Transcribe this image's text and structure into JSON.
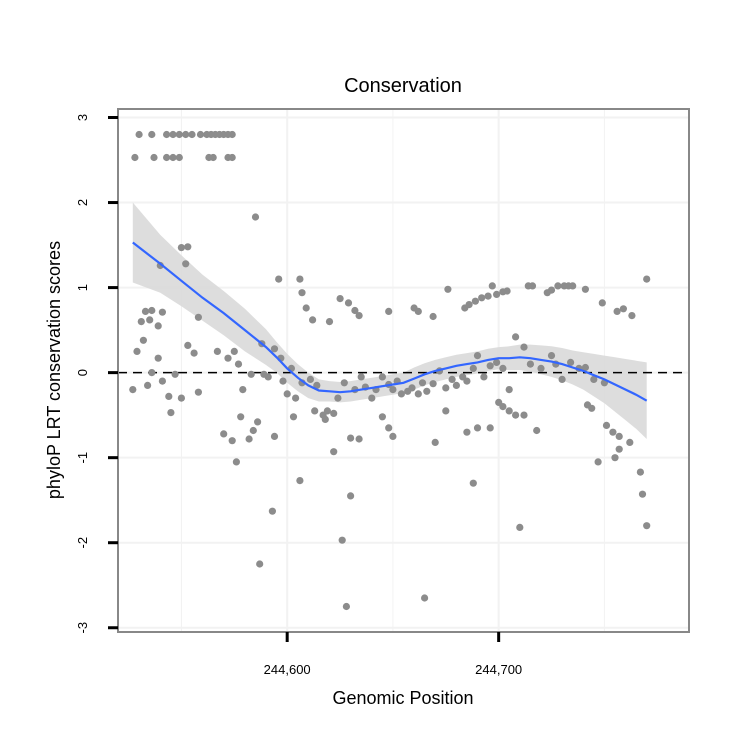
{
  "chart_data": {
    "type": "scatter",
    "title": "Conservation",
    "xlabel": "Genomic Position",
    "ylabel": "phyloP LRT conservation scores",
    "xlim": [
      244520,
      244790
    ],
    "ylim": [
      -3.05,
      3.1
    ],
    "x_ticks": [
      244600,
      244700
    ],
    "x_tick_labels": [
      "244,600",
      "244,700"
    ],
    "y_ticks": [
      -3,
      -2,
      -1,
      0,
      1,
      2,
      3
    ],
    "y_tick_labels": [
      "-3",
      "-2",
      "-1",
      "0",
      "1",
      "2",
      "3"
    ],
    "grid": true,
    "reference_line_y": 0,
    "colors": {
      "points": "#8c8c8c",
      "smooth": "#3366ff",
      "band": "#d9d9d9",
      "panel_border": "#888888",
      "grid": "#f2f2f2"
    },
    "points": [
      [
        244530,
        2.8
      ],
      [
        244536,
        2.8
      ],
      [
        244543,
        2.8
      ],
      [
        244546,
        2.8
      ],
      [
        244549,
        2.8
      ],
      [
        244552,
        2.8
      ],
      [
        244555,
        2.8
      ],
      [
        244559,
        2.8
      ],
      [
        244562,
        2.8
      ],
      [
        244564,
        2.8
      ],
      [
        244566,
        2.8
      ],
      [
        244568,
        2.8
      ],
      [
        244570,
        2.8
      ],
      [
        244572,
        2.8
      ],
      [
        244574,
        2.8
      ],
      [
        244528,
        2.53
      ],
      [
        244537,
        2.53
      ],
      [
        244543,
        2.53
      ],
      [
        244546,
        2.53
      ],
      [
        244549,
        2.53
      ],
      [
        244563,
        2.53
      ],
      [
        244565,
        2.53
      ],
      [
        244572,
        2.53
      ],
      [
        244574,
        2.53
      ],
      [
        244585,
        1.83
      ],
      [
        244550,
        1.47
      ],
      [
        244553,
        1.48
      ],
      [
        244552,
        1.28
      ],
      [
        244540,
        1.26
      ],
      [
        244596,
        1.1
      ],
      [
        244606,
        1.1
      ],
      [
        244607,
        0.94
      ],
      [
        244609,
        0.76
      ],
      [
        244612,
        0.62
      ],
      [
        244625,
        0.87
      ],
      [
        244629,
        0.82
      ],
      [
        244632,
        0.73
      ],
      [
        244634,
        0.67
      ],
      [
        244620,
        0.6
      ],
      [
        244648,
        0.72
      ],
      [
        244660,
        0.76
      ],
      [
        244662,
        0.72
      ],
      [
        244669,
        0.66
      ],
      [
        244676,
        0.98
      ],
      [
        244684,
        0.76
      ],
      [
        244686,
        0.8
      ],
      [
        244689,
        0.84
      ],
      [
        244692,
        0.88
      ],
      [
        244695,
        0.9
      ],
      [
        244697,
        1.02
      ],
      [
        244699,
        0.92
      ],
      [
        244702,
        0.95
      ],
      [
        244704,
        0.96
      ],
      [
        244714,
        1.02
      ],
      [
        244716,
        1.02
      ],
      [
        244723,
        0.94
      ],
      [
        244725,
        0.97
      ],
      [
        244728,
        1.02
      ],
      [
        244731,
        1.02
      ],
      [
        244733,
        1.02
      ],
      [
        244735,
        1.02
      ],
      [
        244741,
        0.98
      ],
      [
        244749,
        0.82
      ],
      [
        244756,
        0.72
      ],
      [
        244759,
        0.75
      ],
      [
        244763,
        0.67
      ],
      [
        244770,
        1.1
      ],
      [
        244533,
        0.72
      ],
      [
        244536,
        0.73
      ],
      [
        244541,
        0.71
      ],
      [
        244539,
        0.55
      ],
      [
        244531,
        0.6
      ],
      [
        244535,
        0.62
      ],
      [
        244558,
        0.65
      ],
      [
        244575,
        0.25
      ],
      [
        244588,
        0.34
      ],
      [
        244594,
        0.28
      ],
      [
        244597,
        0.17
      ],
      [
        244602,
        0.05
      ],
      [
        244553,
        0.32
      ],
      [
        244556,
        0.23
      ],
      [
        244529,
        0.25
      ],
      [
        244532,
        0.38
      ],
      [
        244539,
        0.17
      ],
      [
        244541,
        -0.1
      ],
      [
        244534,
        -0.15
      ],
      [
        244536,
        0
      ],
      [
        244527,
        -0.2
      ],
      [
        244544,
        -0.28
      ],
      [
        244545,
        -0.47
      ],
      [
        244547,
        -0.02
      ],
      [
        244550,
        -0.3
      ],
      [
        244558,
        -0.23
      ],
      [
        244567,
        0.25
      ],
      [
        244572,
        0.17
      ],
      [
        244577,
        0.1
      ],
      [
        244579,
        -0.2
      ],
      [
        244583,
        -0.02
      ],
      [
        244589,
        -0.02
      ],
      [
        244591,
        -0.05
      ],
      [
        244598,
        -0.1
      ],
      [
        244600,
        -0.25
      ],
      [
        244604,
        -0.3
      ],
      [
        244607,
        -0.12
      ],
      [
        244611,
        -0.08
      ],
      [
        244614,
        -0.15
      ],
      [
        244617,
        -0.5
      ],
      [
        244619,
        -0.45
      ],
      [
        244622,
        -0.48
      ],
      [
        244624,
        -0.3
      ],
      [
        244627,
        -0.12
      ],
      [
        244632,
        -0.2
      ],
      [
        244635,
        -0.05
      ],
      [
        244637,
        -0.17
      ],
      [
        244640,
        -0.3
      ],
      [
        244642,
        -0.2
      ],
      [
        244645,
        -0.05
      ],
      [
        244648,
        -0.14
      ],
      [
        244650,
        -0.2
      ],
      [
        244652,
        -0.1
      ],
      [
        244654,
        -0.25
      ],
      [
        244657,
        -0.22
      ],
      [
        244659,
        -0.18
      ],
      [
        244662,
        -0.25
      ],
      [
        244664,
        -0.12
      ],
      [
        244666,
        -0.22
      ],
      [
        244669,
        -0.13
      ],
      [
        244672,
        0.02
      ],
      [
        244675,
        -0.18
      ],
      [
        244678,
        -0.08
      ],
      [
        244680,
        -0.15
      ],
      [
        244683,
        -0.05
      ],
      [
        244685,
        -0.1
      ],
      [
        244688,
        0.05
      ],
      [
        244690,
        0.2
      ],
      [
        244693,
        -0.05
      ],
      [
        244696,
        0.08
      ],
      [
        244699,
        0.12
      ],
      [
        244702,
        0.05
      ],
      [
        244705,
        -0.2
      ],
      [
        244708,
        0.42
      ],
      [
        244712,
        0.3
      ],
      [
        244715,
        0.1
      ],
      [
        244720,
        0.05
      ],
      [
        244725,
        0.2
      ],
      [
        244727,
        0.1
      ],
      [
        244730,
        -0.08
      ],
      [
        244734,
        0.12
      ],
      [
        244738,
        0.05
      ],
      [
        244741,
        0.06
      ],
      [
        244745,
        -0.08
      ],
      [
        244750,
        -0.12
      ],
      [
        244570,
        -0.72
      ],
      [
        244574,
        -0.8
      ],
      [
        244578,
        -0.52
      ],
      [
        244582,
        -0.78
      ],
      [
        244584,
        -0.68
      ],
      [
        244586,
        -0.58
      ],
      [
        244594,
        -0.75
      ],
      [
        244603,
        -0.52
      ],
      [
        244613,
        -0.45
      ],
      [
        244618,
        -0.55
      ],
      [
        244630,
        -0.77
      ],
      [
        244634,
        -0.78
      ],
      [
        244645,
        -0.52
      ],
      [
        244648,
        -0.65
      ],
      [
        244650,
        -0.75
      ],
      [
        244670,
        -0.82
      ],
      [
        244675,
        -0.45
      ],
      [
        244685,
        -0.7
      ],
      [
        244690,
        -0.65
      ],
      [
        244696,
        -0.65
      ],
      [
        244700,
        -0.35
      ],
      [
        244702,
        -0.4
      ],
      [
        244705,
        -0.45
      ],
      [
        244708,
        -0.5
      ],
      [
        244712,
        -0.5
      ],
      [
        244718,
        -0.68
      ],
      [
        244742,
        -0.38
      ],
      [
        244744,
        -0.42
      ],
      [
        244751,
        -0.62
      ],
      [
        244754,
        -0.7
      ],
      [
        244757,
        -0.75
      ],
      [
        244762,
        -0.82
      ],
      [
        244576,
        -1.05
      ],
      [
        244606,
        -1.27
      ],
      [
        244622,
        -0.93
      ],
      [
        244688,
        -1.3
      ],
      [
        244747,
        -1.05
      ],
      [
        244755,
        -1.0
      ],
      [
        244757,
        -0.9
      ],
      [
        244767,
        -1.17
      ],
      [
        244768,
        -1.43
      ],
      [
        244770,
        -1.8
      ],
      [
        244710,
        -1.82
      ],
      [
        244593,
        -1.63
      ],
      [
        244587,
        -2.25
      ],
      [
        244626,
        -1.97
      ],
      [
        244630,
        -1.45
      ],
      [
        244628,
        -2.75
      ],
      [
        244665,
        -2.65
      ]
    ],
    "smooth_line": [
      [
        244527,
        1.53
      ],
      [
        244540,
        1.28
      ],
      [
        244550,
        1.08
      ],
      [
        244560,
        0.88
      ],
      [
        244570,
        0.7
      ],
      [
        244580,
        0.5
      ],
      [
        244590,
        0.3
      ],
      [
        244595,
        0.18
      ],
      [
        244600,
        0.05
      ],
      [
        244605,
        -0.06
      ],
      [
        244610,
        -0.15
      ],
      [
        244615,
        -0.21
      ],
      [
        244620,
        -0.22
      ],
      [
        244625,
        -0.23
      ],
      [
        244630,
        -0.22
      ],
      [
        244635,
        -0.2
      ],
      [
        244640,
        -0.18
      ],
      [
        244645,
        -0.16
      ],
      [
        244650,
        -0.14
      ],
      [
        244655,
        -0.12
      ],
      [
        244660,
        -0.07
      ],
      [
        244665,
        -0.02
      ],
      [
        244670,
        0.02
      ],
      [
        244675,
        0.05
      ],
      [
        244680,
        0.08
      ],
      [
        244685,
        0.1
      ],
      [
        244690,
        0.12
      ],
      [
        244695,
        0.15
      ],
      [
        244700,
        0.17
      ],
      [
        244705,
        0.17
      ],
      [
        244710,
        0.18
      ],
      [
        244715,
        0.17
      ],
      [
        244720,
        0.15
      ],
      [
        244725,
        0.13
      ],
      [
        244730,
        0.1
      ],
      [
        244735,
        0.06
      ],
      [
        244740,
        0.02
      ],
      [
        244745,
        -0.03
      ],
      [
        244750,
        -0.08
      ],
      [
        244755,
        -0.14
      ],
      [
        244760,
        -0.2
      ],
      [
        244765,
        -0.26
      ],
      [
        244770,
        -0.33
      ]
    ],
    "band_upper": [
      [
        244527,
        2.0
      ],
      [
        244540,
        1.62
      ],
      [
        244550,
        1.38
      ],
      [
        244560,
        1.15
      ],
      [
        244570,
        0.96
      ],
      [
        244580,
        0.75
      ],
      [
        244590,
        0.51
      ],
      [
        244595,
        0.36
      ],
      [
        244600,
        0.22
      ],
      [
        244605,
        0.1
      ],
      [
        244610,
        0.0
      ],
      [
        244615,
        -0.08
      ],
      [
        244620,
        -0.1
      ],
      [
        244625,
        -0.11
      ],
      [
        244630,
        -0.1
      ],
      [
        244635,
        -0.08
      ],
      [
        244640,
        -0.06
      ],
      [
        244645,
        -0.04
      ],
      [
        244650,
        -0.02
      ],
      [
        244655,
        0.0
      ],
      [
        244660,
        0.06
      ],
      [
        244665,
        0.11
      ],
      [
        244670,
        0.15
      ],
      [
        244675,
        0.18
      ],
      [
        244680,
        0.21
      ],
      [
        244685,
        0.23
      ],
      [
        244690,
        0.25
      ],
      [
        244695,
        0.28
      ],
      [
        244700,
        0.3
      ],
      [
        244705,
        0.31
      ],
      [
        244710,
        0.33
      ],
      [
        244715,
        0.33
      ],
      [
        244720,
        0.32
      ],
      [
        244725,
        0.31
      ],
      [
        244730,
        0.29
      ],
      [
        244735,
        0.26
      ],
      [
        244740,
        0.24
      ],
      [
        244745,
        0.22
      ],
      [
        244750,
        0.2
      ],
      [
        244755,
        0.18
      ],
      [
        244760,
        0.16
      ],
      [
        244765,
        0.14
      ],
      [
        244770,
        0.12
      ]
    ],
    "band_lower": [
      [
        244527,
        1.06
      ],
      [
        244540,
        0.94
      ],
      [
        244550,
        0.78
      ],
      [
        244560,
        0.61
      ],
      [
        244570,
        0.44
      ],
      [
        244580,
        0.25
      ],
      [
        244590,
        0.09
      ],
      [
        244595,
        0.0
      ],
      [
        244600,
        -0.12
      ],
      [
        244605,
        -0.22
      ],
      [
        244610,
        -0.3
      ],
      [
        244615,
        -0.34
      ],
      [
        244620,
        -0.34
      ],
      [
        244625,
        -0.35
      ],
      [
        244630,
        -0.34
      ],
      [
        244635,
        -0.32
      ],
      [
        244640,
        -0.3
      ],
      [
        244645,
        -0.28
      ],
      [
        244650,
        -0.26
      ],
      [
        244655,
        -0.24
      ],
      [
        244660,
        -0.2
      ],
      [
        244665,
        -0.15
      ],
      [
        244670,
        -0.11
      ],
      [
        244675,
        -0.08
      ],
      [
        244680,
        -0.05
      ],
      [
        244685,
        -0.03
      ],
      [
        244690,
        -0.01
      ],
      [
        244695,
        0.02
      ],
      [
        244700,
        0.04
      ],
      [
        244705,
        0.03
      ],
      [
        244710,
        0.03
      ],
      [
        244715,
        0.01
      ],
      [
        244720,
        -0.02
      ],
      [
        244725,
        -0.05
      ],
      [
        244730,
        -0.09
      ],
      [
        244735,
        -0.14
      ],
      [
        244740,
        -0.2
      ],
      [
        244745,
        -0.28
      ],
      [
        244750,
        -0.36
      ],
      [
        244755,
        -0.46
      ],
      [
        244760,
        -0.56
      ],
      [
        244765,
        -0.66
      ],
      [
        244770,
        -0.78
      ]
    ]
  }
}
